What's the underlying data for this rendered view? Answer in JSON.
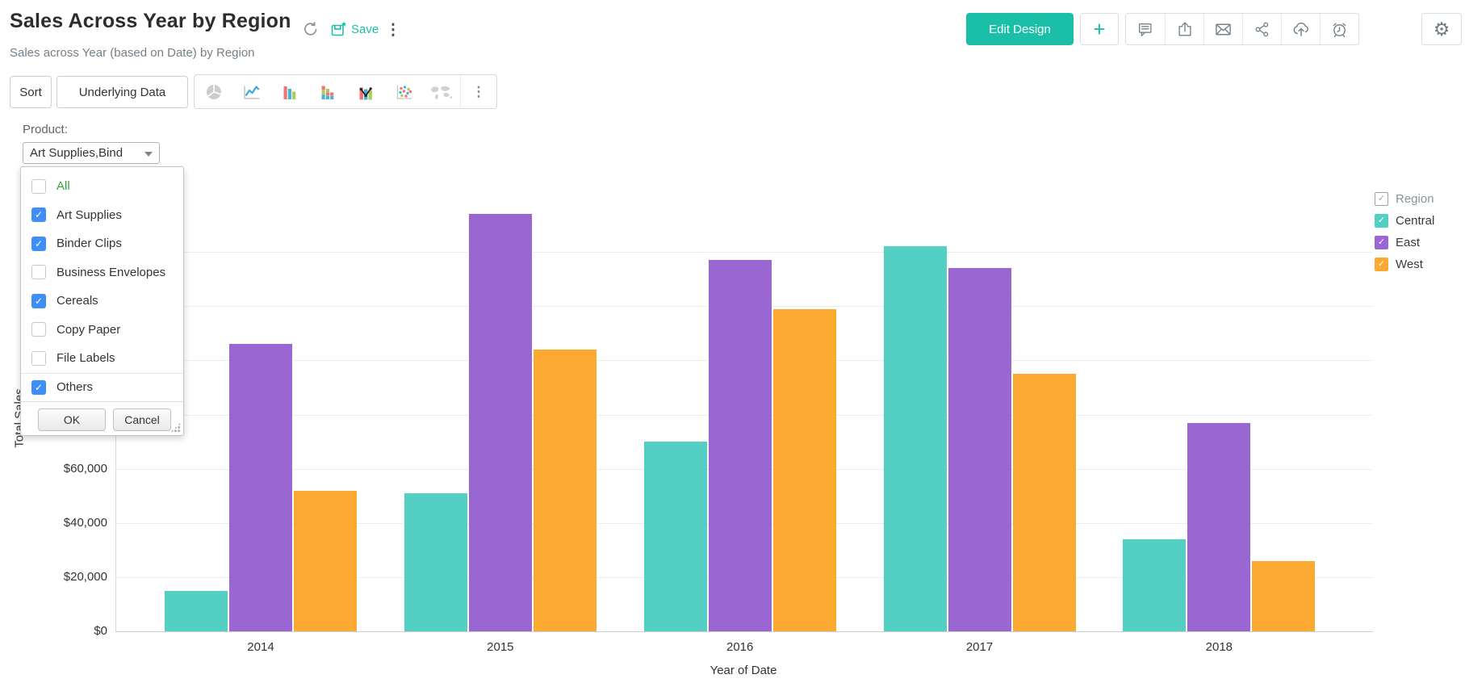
{
  "header": {
    "title": "Sales Across Year by Region",
    "subtitle": "Sales across Year (based on Date) by Region",
    "save_label": "Save",
    "edit_design_label": "Edit Design",
    "add_label": "+",
    "action_icons": [
      "comments",
      "export",
      "email",
      "share",
      "publish",
      "alerts"
    ],
    "settings_icon": "settings-gear",
    "accent_color": "#1bbfa7"
  },
  "toolbar": {
    "sort_label": "Sort",
    "underlying_data_label": "Underlying Data",
    "chart_types": [
      "pie",
      "line",
      "bar",
      "stacked-bar",
      "combo",
      "scatter",
      "map"
    ]
  },
  "filter": {
    "label": "Product:",
    "selected_value": "Art Supplies,Bind",
    "options": [
      {
        "label": "All",
        "checked": false,
        "special": true
      },
      {
        "label": "Art Supplies",
        "checked": true
      },
      {
        "label": "Binder Clips",
        "checked": true
      },
      {
        "label": "Business Envelopes",
        "checked": false
      },
      {
        "label": "Cereals",
        "checked": true
      },
      {
        "label": "Copy Paper",
        "checked": false
      },
      {
        "label": "File Labels",
        "checked": false
      },
      {
        "label": "Others",
        "checked": true,
        "divider": true
      }
    ],
    "ok_label": "OK",
    "cancel_label": "Cancel",
    "checkbox_color": "#3e8ef7",
    "all_option_color": "#35a435"
  },
  "legend": {
    "title": "Region",
    "items": [
      {
        "label": "Central",
        "color": "#54cfc4",
        "checked": true
      },
      {
        "label": "East",
        "color": "#9966d2",
        "checked": true
      },
      {
        "label": "West",
        "color": "#fba930",
        "checked": true
      }
    ]
  },
  "chart_data": {
    "type": "bar",
    "title": "Sales Across Year by Region",
    "categories": [
      "2014",
      "2015",
      "2016",
      "2017",
      "2018"
    ],
    "series": [
      {
        "name": "Central",
        "color": "#54cfc4",
        "values": [
          15000,
          51000,
          70000,
          142000,
          34000
        ]
      },
      {
        "name": "East",
        "color": "#9966d2",
        "values": [
          106000,
          154000,
          137000,
          134000,
          77000
        ]
      },
      {
        "name": "West",
        "color": "#fba930",
        "values": [
          52000,
          104000,
          119000,
          95000,
          26000
        ]
      }
    ],
    "xlabel": "Year of Date",
    "ylabel": "Total Sales",
    "ylim": [
      0,
      160000
    ],
    "ytick_step": 20000,
    "ytick_format": "$ thousands with commas",
    "visible_yticks": [
      "$0",
      "$20,000",
      "$40,000",
      "$60,000"
    ],
    "grid": true,
    "legend_position": "right"
  }
}
